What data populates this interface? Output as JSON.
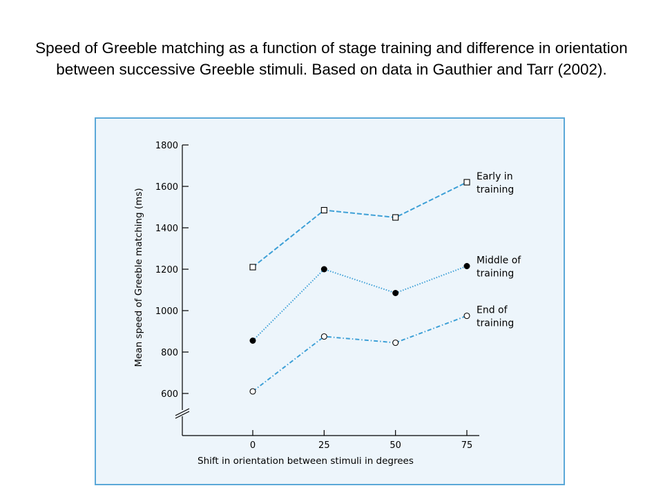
{
  "title": "Speed of Greeble matching as a function of stage training and difference in orientation between successive Greeble stimuli. Based on data in Gauthier and Tarr (2002).",
  "colors": {
    "line": "#3c9fd6",
    "panel_background": "#edf5fb",
    "panel_border": "#5aa8d8"
  },
  "chart_data": {
    "type": "line",
    "x": [
      0,
      25,
      50,
      75
    ],
    "x_tick_labels": [
      "0",
      "25",
      "50",
      "75"
    ],
    "xlabel": "Shift in orientation between stimuli in degrees",
    "ylabel": "Mean speed of Greeble matching (ms)",
    "y_ticks": [
      600,
      800,
      1000,
      1200,
      1400,
      1600,
      1800
    ],
    "y_tick_labels": [
      "600",
      "800",
      "1000",
      "1200",
      "1400",
      "1600",
      "1800"
    ],
    "ylim": [
      600,
      1800
    ],
    "y_axis_break": true,
    "grid": false,
    "legend": "direct labels at right end of each line",
    "series": [
      {
        "name_lines": [
          "Early in",
          "training"
        ],
        "marker": "open-square",
        "line_style": "dashed",
        "values": [
          1210,
          1485,
          1450,
          1620
        ]
      },
      {
        "name_lines": [
          "Middle of",
          "training"
        ],
        "marker": "filled-circle",
        "line_style": "dotted",
        "values": [
          855,
          1200,
          1085,
          1215
        ]
      },
      {
        "name_lines": [
          "End of",
          "training"
        ],
        "marker": "open-circle",
        "line_style": "dash-dot",
        "values": [
          610,
          875,
          845,
          975
        ]
      }
    ]
  }
}
